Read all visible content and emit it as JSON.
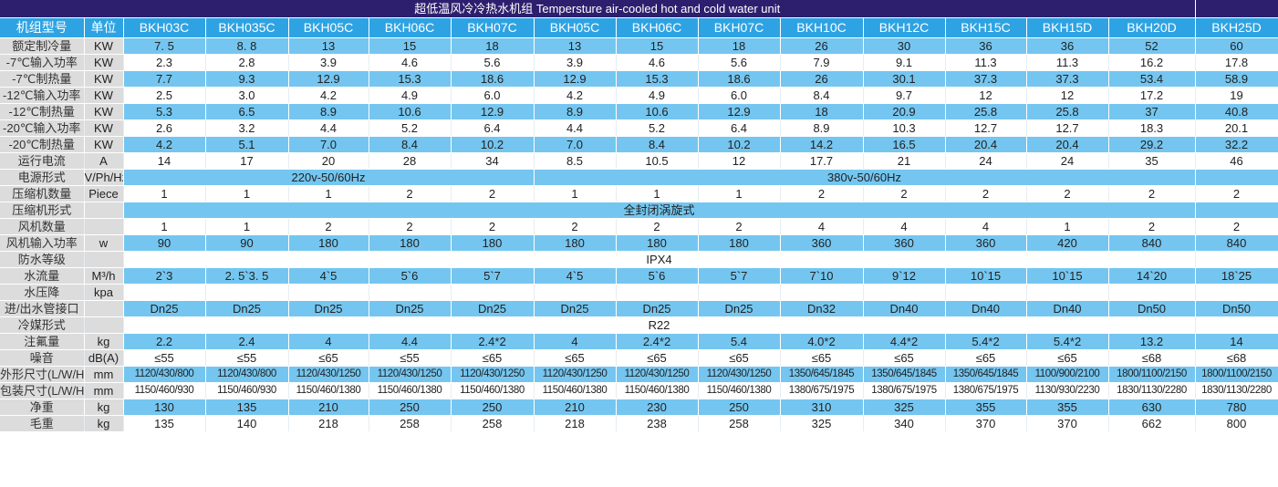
{
  "title": "超低温风冷冷热水机组  Tempersture air-cooled hot and cold water unit",
  "header": {
    "label": "机组型号",
    "unit": "单位",
    "models": [
      "BKH03C",
      "BKH035C",
      "BKH05C",
      "BKH06C",
      "BKH07C",
      "BKH05C",
      "BKH06C",
      "BKH07C",
      "BKH10C",
      "BKH12C",
      "BKH15C",
      "BKH15D",
      "BKH20D",
      "BKH25D"
    ]
  },
  "colors": {
    "title_bg": "#2e1f6e",
    "header_bg": "#2ea3e3",
    "row_blue": "#74c6f0",
    "label_bg": "#dcdcdc"
  },
  "rows": [
    {
      "label": "额定制冷量",
      "unit": "KW",
      "values": [
        "7. 5",
        "8. 8",
        "13",
        "15",
        "18",
        "13",
        "15",
        "18",
        "26",
        "30",
        "36",
        "36",
        "52",
        "60"
      ]
    },
    {
      "label": "-7℃输入功率",
      "unit": "KW",
      "values": [
        "2.3",
        "2.8",
        "3.9",
        "4.6",
        "5.6",
        "3.9",
        "4.6",
        "5.6",
        "7.9",
        "9.1",
        "11.3",
        "11.3",
        "16.2",
        "17.8"
      ]
    },
    {
      "label": "-7℃制热量",
      "unit": "KW",
      "values": [
        "7.7",
        "9.3",
        "12.9",
        "15.3",
        "18.6",
        "12.9",
        "15.3",
        "18.6",
        "26",
        "30.1",
        "37.3",
        "37.3",
        "53.4",
        "58.9"
      ]
    },
    {
      "label": "-12℃输入功率",
      "unit": "KW",
      "values": [
        "2.5",
        "3.0",
        "4.2",
        "4.9",
        "6.0",
        "4.2",
        "4.9",
        "6.0",
        "8.4",
        "9.7",
        "12",
        "12",
        "17.2",
        "19"
      ]
    },
    {
      "label": "-12℃制热量",
      "unit": "KW",
      "values": [
        "5.3",
        "6.5",
        "8.9",
        "10.6",
        "12.9",
        "8.9",
        "10.6",
        "12.9",
        "18",
        "20.9",
        "25.8",
        "25.8",
        "37",
        "40.8"
      ]
    },
    {
      "label": "-20℃输入功率",
      "unit": "KW",
      "values": [
        "2.6",
        "3.2",
        "4.4",
        "5.2",
        "6.4",
        "4.4",
        "5.2",
        "6.4",
        "8.9",
        "10.3",
        "12.7",
        "12.7",
        "18.3",
        "20.1"
      ]
    },
    {
      "label": "-20℃制热量",
      "unit": "KW",
      "values": [
        "4.2",
        "5.1",
        "7.0",
        "8.4",
        "10.2",
        "7.0",
        "8.4",
        "10.2",
        "14.2",
        "16.5",
        "20.4",
        "20.4",
        "29.2",
        "32.2"
      ]
    },
    {
      "label": "运行电流",
      "unit": "A",
      "values": [
        "14",
        "17",
        "20",
        "28",
        "34",
        "8.5",
        "10.5",
        "12",
        "17.7",
        "21",
        "24",
        "24",
        "35",
        "46"
      ]
    },
    {
      "label": "电源形式",
      "unit": "V/Ph/Hz",
      "spans": [
        {
          "text": "220v-50/60Hz",
          "cols": 5
        },
        {
          "text": "380v-50/60Hz",
          "cols": 8
        },
        {
          "text": "",
          "cols": 1
        }
      ]
    },
    {
      "label": "压缩机数量",
      "unit": "Piece",
      "values": [
        "1",
        "1",
        "1",
        "2",
        "2",
        "1",
        "1",
        "1",
        "2",
        "2",
        "2",
        "2",
        "2",
        "2"
      ]
    },
    {
      "label": "压缩机形式",
      "unit": "",
      "spans": [
        {
          "text": "全封闭涡旋式",
          "cols": 13
        },
        {
          "text": "",
          "cols": 1
        }
      ]
    },
    {
      "label": "风机数量",
      "unit": "",
      "values": [
        "1",
        "1",
        "2",
        "2",
        "2",
        "2",
        "2",
        "2",
        "4",
        "4",
        "4",
        "1",
        "2",
        "2"
      ]
    },
    {
      "label": "风机输入功率",
      "unit": "w",
      "values": [
        "90",
        "90",
        "180",
        "180",
        "180",
        "180",
        "180",
        "180",
        "360",
        "360",
        "360",
        "420",
        "840",
        "840"
      ]
    },
    {
      "label": "防水等级",
      "unit": "",
      "spans": [
        {
          "text": "IPX4",
          "cols": 13
        },
        {
          "text": "",
          "cols": 1
        }
      ]
    },
    {
      "label": "水流量",
      "unit": "M³/h",
      "values": [
        "2`3",
        "2. 5`3. 5",
        "4`5",
        "5`6",
        "5`7",
        "4`5",
        "5`6",
        "5`7",
        "7`10",
        "9`12",
        "10`15",
        "10`15",
        "14`20",
        "18`25"
      ]
    },
    {
      "label": "水压降",
      "unit": "kpa",
      "values": [
        "",
        "",
        "",
        "",
        "",
        "",
        "",
        "",
        "",
        "",
        "",
        "",
        "",
        ""
      ]
    },
    {
      "label": "进/出水管接口",
      "unit": "",
      "values": [
        "Dn25",
        "Dn25",
        "Dn25",
        "Dn25",
        "Dn25",
        "Dn25",
        "Dn25",
        "Dn25",
        "Dn32",
        "Dn40",
        "Dn40",
        "Dn40",
        "Dn50",
        "Dn50"
      ]
    },
    {
      "label": "冷媒形式",
      "unit": "",
      "spans": [
        {
          "text": "R22",
          "cols": 13
        },
        {
          "text": "",
          "cols": 1
        }
      ]
    },
    {
      "label": "注氟量",
      "unit": "kg",
      "values": [
        "2.2",
        "2.4",
        "4",
        "4.4",
        "2.4*2",
        "4",
        "2.4*2",
        "5.4",
        "4.0*2",
        "4.4*2",
        "5.4*2",
        "5.4*2",
        "13.2",
        "14"
      ]
    },
    {
      "label": "噪音",
      "unit": "dB(A)",
      "values": [
        "≤55",
        "≤55",
        "≤65",
        "≤55",
        "≤65",
        "≤65",
        "≤65",
        "≤65",
        "≤65",
        "≤65",
        "≤65",
        "≤65",
        "≤68",
        "≤68"
      ]
    },
    {
      "label": "外形尺寸(L/W/H)",
      "unit": "mm",
      "small": true,
      "values": [
        "1120/430/800",
        "1120/430/800",
        "1120/430/1250",
        "1120/430/1250",
        "1120/430/1250",
        "1120/430/1250",
        "1120/430/1250",
        "1120/430/1250",
        "1350/645/1845",
        "1350/645/1845",
        "1350/645/1845",
        "1100/900/2100",
        "1800/1100/2150",
        "1800/1100/2150"
      ]
    },
    {
      "label": "包装尺寸(L/W/H)",
      "unit": "mm",
      "small": true,
      "values": [
        "1150/460/930",
        "1150/460/930",
        "1150/460/1380",
        "1150/460/1380",
        "1150/460/1380",
        "1150/460/1380",
        "1150/460/1380",
        "1150/460/1380",
        "1380/675/1975",
        "1380/675/1975",
        "1380/675/1975",
        "1130/930/2230",
        "1830/1130/2280",
        "1830/1130/2280"
      ]
    },
    {
      "label": "净重",
      "unit": "kg",
      "values": [
        "130",
        "135",
        "210",
        "250",
        "250",
        "210",
        "230",
        "250",
        "310",
        "325",
        "355",
        "355",
        "630",
        "780"
      ]
    },
    {
      "label": "毛重",
      "unit": "kg",
      "values": [
        "135",
        "140",
        "218",
        "258",
        "258",
        "218",
        "238",
        "258",
        "325",
        "340",
        "370",
        "370",
        "662",
        "800"
      ]
    }
  ]
}
